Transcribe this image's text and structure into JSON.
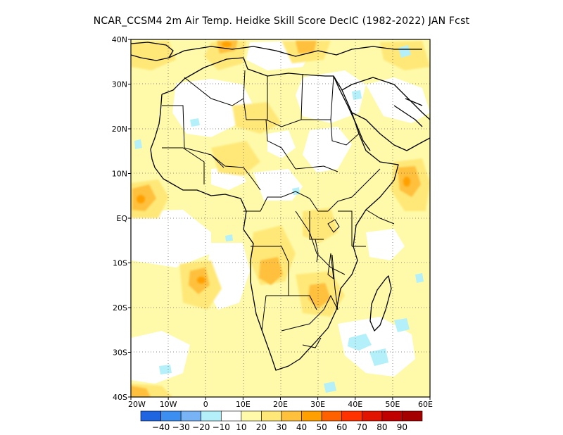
{
  "title": "NCAR_CCSM4  2m Air Temp. Heidke Skill Score DecIC (1982-2022) JAN Fcst",
  "map": {
    "lon_range": [
      -20,
      60
    ],
    "lat_range": [
      -40,
      40
    ],
    "lon_ticks": [
      "20W",
      "10W",
      "0",
      "10E",
      "20E",
      "30E",
      "40E",
      "50E",
      "60E"
    ],
    "lat_ticks": [
      "40N",
      "30N",
      "20N",
      "10N",
      "EQ",
      "10S",
      "20S",
      "30S",
      "40S"
    ],
    "gridlines": "dotted"
  },
  "colorbar": {
    "colors": [
      "#1f64e0",
      "#3c8ff0",
      "#78b4f5",
      "#b4f0fa",
      "#ffffff",
      "#fffaaa",
      "#ffe878",
      "#ffc03c",
      "#ffa000",
      "#ff6000",
      "#ff3200",
      "#e11400",
      "#c00000",
      "#a50000"
    ],
    "labels": [
      "-40",
      "-30",
      "-20",
      "-10",
      "10",
      "20",
      "30",
      "40",
      "50",
      "60",
      "70",
      "80",
      "90"
    ]
  },
  "colors": {
    "light_yellow": "#fffaaa",
    "yellow": "#ffe878",
    "orange": "#ffc03c",
    "deep_orange": "#ffa000",
    "light_blue": "#b4f0fa",
    "coastline": "#000000"
  }
}
